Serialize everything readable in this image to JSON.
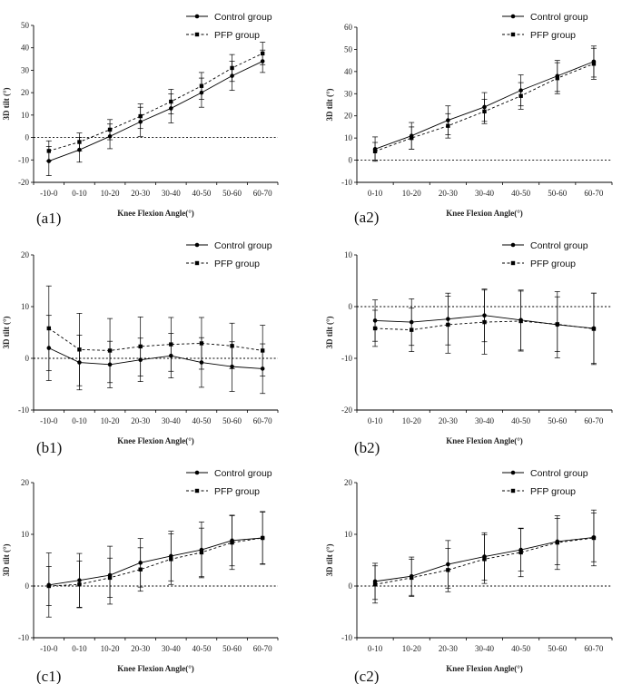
{
  "figure": {
    "background": "#ffffff",
    "line_color": "#000000"
  },
  "legend_names": [
    "Control group",
    "PFP group"
  ],
  "chart_data": [
    {
      "id": "a1",
      "panel_label": "(a1)",
      "type": "line",
      "categories": [
        "-10-0",
        "0-10",
        "10-20",
        "20-30",
        "30-40",
        "40-50",
        "50-60",
        "60-70"
      ],
      "ylim": [
        -20,
        50
      ],
      "yticks": [
        -20,
        -10,
        0,
        10,
        20,
        30,
        40,
        50
      ],
      "xlabel": "Knee Flexion Angle(°)",
      "ylabel": "3D tilt (°)",
      "legend": "top-right",
      "series": [
        {
          "name": "Control group",
          "marker": "circle",
          "style": "solid",
          "values": [
            -10.5,
            -5.5,
            0.5,
            7,
            13,
            20,
            27.5,
            34
          ],
          "errors": [
            6.5,
            5.5,
            5.5,
            6.5,
            6.5,
            6.5,
            6.5,
            5
          ]
        },
        {
          "name": "PFP group",
          "marker": "square",
          "style": "dashed",
          "values": [
            -6,
            -2,
            3.5,
            9.5,
            16,
            23,
            31,
            37.5
          ],
          "errors": [
            4.5,
            4,
            4.5,
            5.5,
            5.5,
            6,
            6,
            5
          ]
        }
      ]
    },
    {
      "id": "a2",
      "panel_label": "(a2)",
      "type": "line",
      "categories": [
        "0-10",
        "10-20",
        "20-30",
        "30-40",
        "40-50",
        "50-60",
        "60-70"
      ],
      "ylim": [
        -10,
        60
      ],
      "yticks": [
        -10,
        0,
        10,
        20,
        30,
        40,
        50,
        60
      ],
      "xlabel": "Knee Flexion Angle(°)",
      "ylabel": "3D tilt (°)",
      "legend": "top-right",
      "series": [
        {
          "name": "Control group",
          "marker": "circle",
          "style": "solid",
          "values": [
            5,
            11,
            18,
            24,
            31.5,
            38,
            44.5
          ],
          "errors": [
            5.5,
            6,
            6.5,
            6.5,
            7,
            7,
            7
          ]
        },
        {
          "name": "PFP group",
          "marker": "square",
          "style": "dashed",
          "values": [
            4,
            10,
            15.5,
            22,
            29,
            37,
            43.5
          ],
          "errors": [
            4,
            5,
            5.5,
            5.5,
            6,
            7,
            7
          ]
        }
      ]
    },
    {
      "id": "b1",
      "panel_label": "(b1)",
      "type": "line",
      "categories": [
        "-10-0",
        "0-10",
        "10-20",
        "20-30",
        "30-40",
        "40-50",
        "50-60",
        "60-70"
      ],
      "ylim": [
        -10,
        20
      ],
      "yticks": [
        -10,
        0,
        10,
        20
      ],
      "xlabel": "Knee Flexion Angle(°)",
      "ylabel": "3D tilt (°)",
      "legend": "top-right",
      "series": [
        {
          "name": "Control group",
          "marker": "circle",
          "style": "solid",
          "values": [
            2,
            -0.8,
            -1.2,
            -0.3,
            0.5,
            -0.8,
            -1.6,
            -2
          ],
          "errors": [
            6.3,
            5.3,
            4.5,
            4.2,
            4.3,
            4.8,
            4.8,
            4.8
          ]
        },
        {
          "name": "PFP group",
          "marker": "square",
          "style": "dashed",
          "values": [
            5.8,
            1.7,
            1.5,
            2.3,
            2.7,
            2.9,
            2.4,
            1.5
          ],
          "errors": [
            8.2,
            7,
            6.2,
            5.7,
            5.2,
            5,
            4.4,
            4.9
          ]
        }
      ]
    },
    {
      "id": "b2",
      "panel_label": "(b2)",
      "type": "line",
      "categories": [
        "0-10",
        "10-20",
        "20-30",
        "30-40",
        "40-50",
        "50-60",
        "60-70"
      ],
      "ylim": [
        -20,
        10
      ],
      "yticks": [
        -20,
        -10,
        0,
        10
      ],
      "xlabel": "Knee Flexion Angle(°)",
      "ylabel": "3D tilt (°)",
      "legend": "top-right",
      "series": [
        {
          "name": "Control group",
          "marker": "circle",
          "style": "solid",
          "values": [
            -2.7,
            -3,
            -2.4,
            -1.7,
            -2.6,
            -3.5,
            -4.2
          ],
          "errors": [
            4,
            4.5,
            5,
            5.1,
            5.8,
            6.4,
            6.8
          ]
        },
        {
          "name": "PFP group",
          "marker": "square",
          "style": "dashed",
          "values": [
            -4.2,
            -4.5,
            -3.5,
            -3,
            -2.8,
            -3.4,
            -4.3
          ],
          "errors": [
            3.5,
            4.2,
            5.5,
            6.2,
            5.8,
            5.3,
            6.9
          ]
        }
      ]
    },
    {
      "id": "c1",
      "panel_label": "(c1)",
      "type": "line",
      "categories": [
        "-10-0",
        "0-10",
        "10-20",
        "20-30",
        "30-40",
        "40-50",
        "50-60",
        "60-70"
      ],
      "ylim": [
        -10,
        20
      ],
      "yticks": [
        -10,
        0,
        10,
        20
      ],
      "xlabel": "Knee Flexion Angle(°)",
      "ylabel": "3D tilt (°)",
      "legend": "top-right",
      "series": [
        {
          "name": "Control group",
          "marker": "circle",
          "style": "solid",
          "values": [
            0.2,
            1.1,
            2.1,
            4.5,
            5.8,
            7,
            8.8,
            9.3
          ],
          "errors": [
            6.2,
            5.2,
            5.6,
            4.7,
            4.8,
            5.4,
            4.9,
            5
          ]
        },
        {
          "name": "PFP group",
          "marker": "square",
          "style": "dashed",
          "values": [
            0,
            0.3,
            1.6,
            3.2,
            5.2,
            6.5,
            8.4,
            9.3
          ],
          "errors": [
            3.8,
            4.5,
            3.8,
            4.2,
            4.9,
            4.7,
            5.2,
            5.1
          ]
        }
      ]
    },
    {
      "id": "c2",
      "panel_label": "(c2)",
      "type": "line",
      "categories": [
        "0-10",
        "10-20",
        "20-30",
        "30-40",
        "40-50",
        "50-60",
        "60-70"
      ],
      "ylim": [
        -10,
        20
      ],
      "yticks": [
        -10,
        0,
        10,
        20
      ],
      "xlabel": "Knee Flexion Angle(°)",
      "ylabel": "3D tilt (°)",
      "legend": "top-right",
      "series": [
        {
          "name": "Control group",
          "marker": "circle",
          "style": "solid",
          "values": [
            0.9,
            1.9,
            4.2,
            5.7,
            7,
            8.6,
            9.4
          ],
          "errors": [
            3.5,
            3.7,
            4.6,
            4.6,
            4.1,
            4.5,
            4.7
          ]
        },
        {
          "name": "PFP group",
          "marker": "square",
          "style": "dashed",
          "values": [
            0.3,
            1.6,
            3.1,
            5.2,
            6.5,
            8.4,
            9.3
          ],
          "errors": [
            3.6,
            3.6,
            4.2,
            4.7,
            4.7,
            5.2,
            5.4
          ]
        }
      ]
    }
  ]
}
